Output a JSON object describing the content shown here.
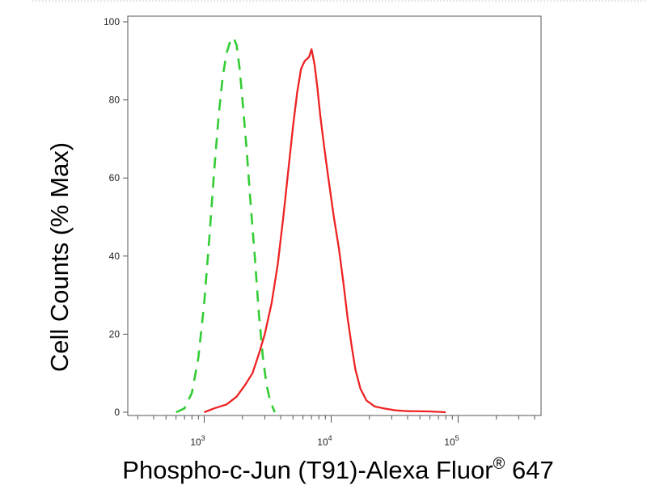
{
  "chart_data": {
    "type": "line",
    "title": "",
    "xlabel": "Phospho-c-Jun (T91)-Alexa Fluor® 647",
    "ylabel": "Cell Counts (% Max)",
    "xscale": "log",
    "xlim": [
      250,
      450000
    ],
    "ylim": [
      0,
      100
    ],
    "x_ticks": [
      {
        "value": 1000,
        "base": "10",
        "exp": "3"
      },
      {
        "value": 10000,
        "base": "10",
        "exp": "4"
      },
      {
        "value": 100000,
        "base": "10",
        "exp": "5"
      }
    ],
    "y_ticks": [
      0,
      20,
      40,
      60,
      80,
      100
    ],
    "grid": false,
    "legend": "none",
    "series": [
      {
        "style": "dashed",
        "color": "#33cc33",
        "points": [
          [
            600,
            0
          ],
          [
            700,
            1
          ],
          [
            800,
            5
          ],
          [
            900,
            14
          ],
          [
            1000,
            28
          ],
          [
            1100,
            45
          ],
          [
            1200,
            62
          ],
          [
            1300,
            76
          ],
          [
            1400,
            86
          ],
          [
            1500,
            92
          ],
          [
            1600,
            95
          ],
          [
            1700,
            96
          ],
          [
            1800,
            94
          ],
          [
            1900,
            88
          ],
          [
            2000,
            80
          ],
          [
            2150,
            68
          ],
          [
            2300,
            55
          ],
          [
            2500,
            40
          ],
          [
            2700,
            25
          ],
          [
            2900,
            14
          ],
          [
            3100,
            7
          ],
          [
            3300,
            3
          ],
          [
            3600,
            0
          ]
        ]
      },
      {
        "style": "solid",
        "color": "#ee2222",
        "points": [
          [
            1000,
            0
          ],
          [
            1200,
            1
          ],
          [
            1500,
            2
          ],
          [
            1800,
            4
          ],
          [
            2100,
            7
          ],
          [
            2400,
            10
          ],
          [
            2700,
            15
          ],
          [
            3000,
            20
          ],
          [
            3400,
            28
          ],
          [
            3800,
            38
          ],
          [
            4200,
            50
          ],
          [
            4600,
            62
          ],
          [
            5000,
            73
          ],
          [
            5400,
            82
          ],
          [
            5800,
            88
          ],
          [
            6200,
            90
          ],
          [
            6700,
            91
          ],
          [
            7000,
            93
          ],
          [
            7400,
            89
          ],
          [
            7800,
            83
          ],
          [
            8200,
            76
          ],
          [
            8800,
            68
          ],
          [
            9500,
            60
          ],
          [
            10500,
            50
          ],
          [
            11500,
            42
          ],
          [
            12500,
            33
          ],
          [
            13500,
            24
          ],
          [
            14500,
            17
          ],
          [
            15500,
            11
          ],
          [
            17000,
            6
          ],
          [
            19000,
            3
          ],
          [
            22000,
            1.5
          ],
          [
            26000,
            1
          ],
          [
            32000,
            0.5
          ],
          [
            40000,
            0.3
          ],
          [
            60000,
            0.2
          ],
          [
            80000,
            0
          ]
        ]
      }
    ]
  }
}
